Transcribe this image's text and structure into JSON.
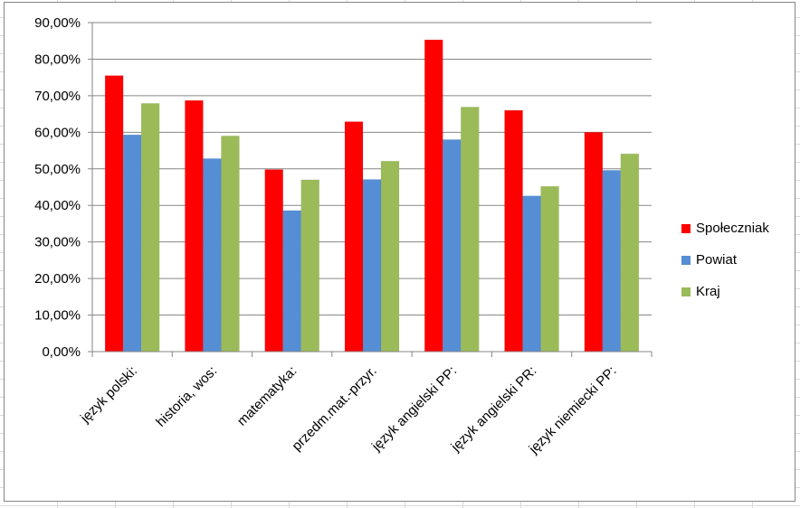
{
  "chart_data": {
    "type": "bar",
    "categories": [
      "język polski:",
      "historia, wos:",
      "matematyka:",
      "przedm.mat.-przyr.",
      "język angielski PP:",
      "język angielski PR:",
      "język niemiecki PP:"
    ],
    "series": [
      {
        "name": "Społeczniak",
        "color": "#ff0000",
        "values": [
          75.5,
          68.7,
          49.8,
          62.9,
          85.3,
          66.0,
          60.0
        ]
      },
      {
        "name": "Powiat",
        "color": "#558ed5",
        "values": [
          59.3,
          52.8,
          38.6,
          47.1,
          58.0,
          42.6,
          49.6
        ]
      },
      {
        "name": "Kraj",
        "color": "#9bbb59",
        "values": [
          67.9,
          59.0,
          47.0,
          52.1,
          66.9,
          45.2,
          54.1
        ]
      }
    ],
    "ylim": [
      0,
      90
    ],
    "yticks": [
      "0,00%",
      "10,00%",
      "20,00%",
      "30,00%",
      "40,00%",
      "50,00%",
      "60,00%",
      "70,00%",
      "80,00%",
      "90,00%"
    ],
    "title": "",
    "xlabel": "",
    "ylabel": "",
    "grid": true,
    "legend_position": "right"
  }
}
